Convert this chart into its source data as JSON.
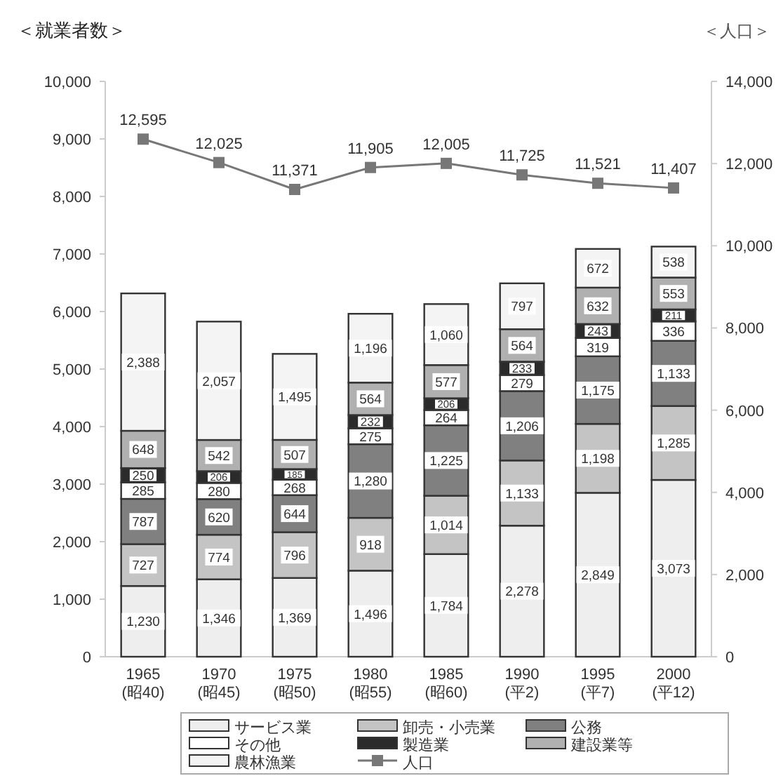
{
  "chart_data": {
    "type": "bar",
    "stacked": true,
    "categories": [
      "1965\n(昭40)",
      "1970\n(昭45)",
      "1975\n(昭50)",
      "1980\n(昭55)",
      "1985\n(昭60)",
      "1990\n(平2)",
      "1995\n(平7)",
      "2000\n(平12)"
    ],
    "series": [
      {
        "name": "サービス業",
        "color": "#eeeeee",
        "values": [
          1230,
          1346,
          1369,
          1496,
          1784,
          2278,
          2849,
          3073
        ],
        "value_labels": [
          "1,230",
          "1,346",
          "1,369",
          "1,496",
          "1,784",
          "2,278",
          "2,849",
          "3,073"
        ]
      },
      {
        "name": "卸売・小売業",
        "color": "#c4c4c4",
        "values": [
          727,
          774,
          796,
          918,
          1014,
          1133,
          1198,
          1285
        ],
        "value_labels": [
          "727",
          "774",
          "796",
          "918",
          "1,014",
          "1,133",
          "1,198",
          "1,285"
        ]
      },
      {
        "name": "公務",
        "color": "#808080",
        "values": [
          787,
          620,
          644,
          1280,
          1225,
          1206,
          1175,
          1133
        ],
        "value_labels": [
          "787",
          "620",
          "644",
          "1,280",
          "1,225",
          "1,206",
          "1,175",
          "1,133"
        ]
      },
      {
        "name": "その他",
        "color": "#ffffff",
        "values": [
          285,
          280,
          268,
          275,
          264,
          279,
          319,
          336
        ],
        "value_labels": [
          "285",
          "280",
          "268",
          "275",
          "264",
          "279",
          "319",
          "336"
        ]
      },
      {
        "name": "製造業",
        "color": "#2b2b2b",
        "values": [
          250,
          206,
          185,
          232,
          206,
          233,
          243,
          211
        ],
        "value_labels": [
          "250",
          "206",
          "185",
          "232",
          "206",
          "233",
          "243",
          "211"
        ]
      },
      {
        "name": "建設業等",
        "color": "#b0b0b0",
        "values": [
          648,
          542,
          507,
          564,
          577,
          564,
          632,
          553
        ],
        "value_labels": [
          "648",
          "542",
          "507",
          "564",
          "577",
          "564",
          "632",
          "553"
        ]
      },
      {
        "name": "農林漁業",
        "color": "#f4f4f4",
        "values": [
          2388,
          2057,
          1495,
          1196,
          1060,
          797,
          672,
          538
        ],
        "value_labels": [
          "2,388",
          "2,057",
          "1,495",
          "1,196",
          "1,060",
          "797",
          "672",
          "538"
        ]
      },
      {
        "name": "人口",
        "type": "line",
        "axis": "y2",
        "color": "#777777",
        "values": [
          12595,
          12025,
          11371,
          11905,
          12005,
          11725,
          11521,
          11407
        ],
        "value_labels": [
          "12,595",
          "12,025",
          "11,371",
          "11,905",
          "12,005",
          "11,725",
          "11,521",
          "11,407"
        ]
      }
    ],
    "ylim": [
      0,
      10000
    ],
    "yticks": [
      0,
      {
        "value": 1000,
        "label": "1,000"
      },
      {
        "value": 2000,
        "label": "2,000"
      },
      {
        "value": 3000,
        "label": "3,000"
      },
      {
        "value": 4000,
        "label": "4,000"
      },
      {
        "value": 5000,
        "label": "5,000"
      },
      {
        "value": 6000,
        "label": "6,000"
      },
      {
        "value": 7000,
        "label": "7,000"
      },
      {
        "value": 8000,
        "label": "8,000"
      },
      {
        "value": 9000,
        "label": "9,000"
      },
      {
        "value": 10000,
        "label": "10,000"
      }
    ],
    "y2lim": [
      0,
      14000
    ],
    "y2ticks": [
      0,
      {
        "value": 2000,
        "label": "2,000"
      },
      {
        "value": 4000,
        "label": "4,000"
      },
      {
        "value": 6000,
        "label": "6,000"
      },
      {
        "value": 8000,
        "label": "8,000"
      },
      {
        "value": 10000,
        "label": "10,000"
      },
      {
        "value": 12000,
        "label": "12,000"
      },
      {
        "value": 14000,
        "label": "14,000"
      }
    ],
    "ylabel": "＜就業者数＞",
    "y2label": "＜人口＞",
    "legend": "bottom",
    "marker": "square",
    "line_style": "solid"
  }
}
